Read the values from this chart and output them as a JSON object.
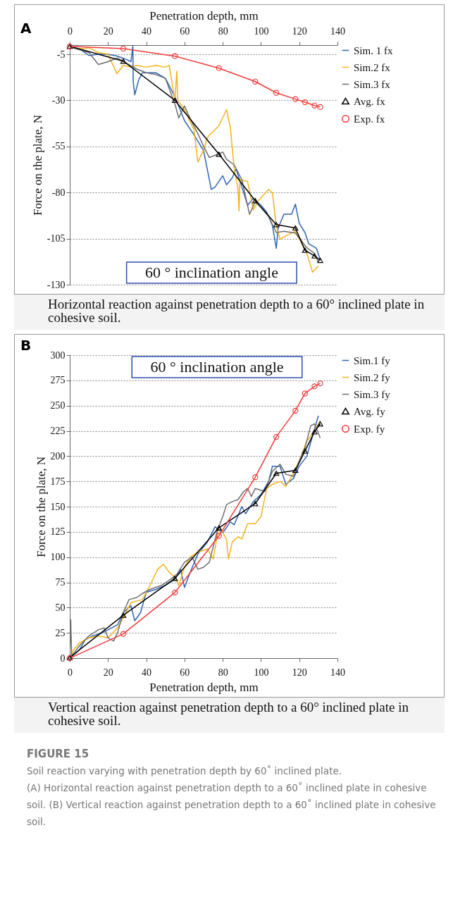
{
  "chart_data": [
    {
      "type": "line",
      "title": "A",
      "xlabel": "Penetration depth, mm",
      "ylabel": "Force on the plate, N",
      "xlim": [
        0,
        140
      ],
      "xticks": [
        0,
        20,
        40,
        60,
        80,
        100,
        120,
        140
      ],
      "ylim": [
        -130,
        0
      ],
      "yticks": [
        -5,
        -30,
        -55,
        -80,
        -105,
        -130
      ],
      "grid": "y",
      "legend": "right",
      "line_style": "solid",
      "annotations": [
        "60 °  inclination angle",
        "Horizontal reaction against penetration depth to a 60° inclined plate in cohesive soil."
      ],
      "series": [
        {
          "name": "Sim. 1 fx",
          "color": "#2e64b4",
          "marker": "none",
          "x": [
            0,
            5,
            10,
            15,
            20,
            25,
            30,
            32,
            33,
            33.2,
            34,
            36,
            38,
            45,
            50,
            55,
            60,
            65,
            70,
            74,
            76,
            80,
            82,
            85,
            87,
            90,
            93,
            96,
            100,
            103,
            106,
            108,
            109,
            112,
            116,
            118,
            120,
            123,
            125,
            129,
            131
          ],
          "values": [
            -1,
            -2,
            -5.6,
            -5,
            -5,
            -6,
            -8,
            -9,
            -0.5,
            -20,
            -27,
            -19,
            -15,
            -15,
            -18,
            -28,
            -41,
            -48.7,
            -57.3,
            -78.3,
            -77,
            -70.9,
            -75.8,
            -72,
            -67.2,
            -77,
            -86.9,
            -83.2,
            -86.9,
            -90.6,
            -98,
            -110.3,
            -99.2,
            -91.8,
            -91.8,
            -86.3,
            -96.7,
            -101.7,
            -107.8,
            -110.3,
            -116.5
          ]
        },
        {
          "name": "Sim.2 fx",
          "color": "#f5b21b",
          "marker": "none",
          "x": [
            0,
            5,
            10,
            15,
            20,
            24.7,
            28,
            32,
            35,
            40,
            45,
            50,
            52,
            55,
            56,
            56.5,
            60,
            65,
            67,
            70,
            72,
            78,
            82,
            84,
            86,
            88,
            88.5,
            89,
            93,
            96,
            99,
            104,
            106,
            108,
            110,
            114,
            118,
            121,
            124,
            127,
            130
          ],
          "values": [
            -1,
            -2,
            -1.5,
            -4,
            -5,
            -15.5,
            -11,
            -12,
            -11,
            -12,
            -11,
            -12,
            -11,
            -30,
            -14.2,
            -30,
            -35,
            -46,
            -63.5,
            -57,
            -50,
            -43.8,
            -35,
            -45,
            -67,
            -78,
            -90,
            -73,
            -74,
            -89.4,
            -84,
            -78.3,
            -80,
            -98,
            -105.4,
            -103,
            -101,
            -107,
            -113,
            -123.2,
            -120
          ]
        },
        {
          "name": "Sim.3 fx",
          "color": "#6e6e6e",
          "marker": "none",
          "x": [
            0,
            5,
            10,
            15,
            20,
            25,
            30,
            35,
            40,
            45,
            50,
            55,
            57,
            60,
            63,
            67,
            70,
            73,
            78,
            80,
            82,
            86,
            90,
            94,
            97,
            100,
            104,
            108,
            112,
            118,
            121,
            124,
            128,
            130
          ],
          "values": [
            -1,
            -2.5,
            -4,
            -10.5,
            -9,
            -7,
            -10,
            -13,
            -15,
            -16,
            -18,
            -32,
            -39.5,
            -33,
            -40,
            -48,
            -55,
            -61,
            -59,
            -58,
            -62,
            -65,
            -73,
            -91.8,
            -85,
            -88,
            -93,
            -101.7,
            -101,
            -102,
            -106,
            -110,
            -113,
            -118
          ]
        },
        {
          "name": "Avg. fx",
          "color": "#000000",
          "marker": "triangle",
          "x": [
            0,
            28,
            55,
            78,
            97,
            108,
            118,
            123,
            128,
            131
          ],
          "values": [
            -0.7,
            -8.7,
            -30,
            -59.2,
            -84.4,
            -97.4,
            -99.2,
            -111.3,
            -114.4,
            -116.8
          ]
        },
        {
          "name": "Exp. fx",
          "color": "#f23a3a",
          "marker": "circle",
          "x": [
            0,
            28,
            55,
            78,
            97,
            108,
            118,
            123,
            128,
            131
          ],
          "values": [
            -0.7,
            -1.9,
            -6,
            -12.5,
            -19.8,
            -25.9,
            -29.3,
            -31,
            -32.8,
            -33.6
          ]
        }
      ]
    },
    {
      "type": "line",
      "title": "B",
      "xlabel": "Penetration depth, mm",
      "ylabel": "Force on the plate, N",
      "xlim": [
        0,
        140
      ],
      "xticks": [
        0,
        20,
        40,
        60,
        80,
        100,
        120,
        140
      ],
      "ylim": [
        0,
        300
      ],
      "yticks": [
        0,
        25,
        50,
        75,
        100,
        125,
        150,
        175,
        200,
        225,
        250,
        275,
        300
      ],
      "grid": "y",
      "legend": "right",
      "line_style": "solid",
      "annotations": [
        "60 °  inclination angle",
        "Vertical reaction against penetration depth to a 60° inclined plate in cohesive soil.",
        "FIGURE 15",
        "Soil reaction varying with penetration depth by 60˚ inclined plate.",
        "(A) Horizontal reaction against penetration depth to a 60˚ inclined plate in cohesive soil. (B) Vertical reaction against penetration depth to a 60˚ inclined plate in cohesive soil."
      ],
      "series": [
        {
          "name": "Sim.1 fy",
          "color": "#2e64b4",
          "marker": "none",
          "x": [
            0,
            2,
            5,
            8,
            12,
            17,
            20,
            25,
            28,
            32,
            34,
            37,
            40,
            45,
            50,
            55,
            58,
            60,
            63,
            67,
            72,
            76,
            80,
            84,
            86,
            90,
            92,
            96,
            100,
            104,
            106,
            110,
            113,
            117,
            120,
            124,
            127,
            130
          ],
          "values": [
            0,
            3,
            8,
            18,
            22,
            25,
            28,
            33,
            45,
            52,
            37,
            45,
            65,
            68,
            72,
            78,
            88,
            70,
            85,
            103,
            115,
            130,
            124,
            135,
            132,
            150,
            143,
            155,
            162,
            175,
            190,
            190,
            172,
            178,
            190,
            200,
            220,
            240
          ]
        },
        {
          "name": "Sim.2 fy",
          "color": "#f5b21b",
          "marker": "none",
          "x": [
            0,
            2,
            5,
            10,
            15,
            20,
            25,
            28,
            32,
            38,
            42,
            46,
            49,
            52,
            55,
            57,
            60,
            63,
            67,
            72,
            75,
            78,
            80,
            82,
            83,
            85,
            88,
            90,
            93,
            97,
            100,
            103,
            106,
            110,
            113,
            116,
            120,
            124,
            128,
            131
          ],
          "values": [
            0,
            8,
            15,
            20,
            22,
            20,
            30,
            40,
            55,
            58,
            72,
            88,
            93,
            85,
            80,
            72,
            90,
            100,
            105,
            108,
            98,
            130,
            125,
            117,
            98,
            115,
            120,
            118,
            133,
            133,
            140,
            168,
            172,
            175,
            170,
            180,
            195,
            215,
            225,
            235
          ]
        },
        {
          "name": "Sim.3 fy",
          "color": "#6e6e6e",
          "marker": "none",
          "x": [
            0,
            0.5,
            1,
            5,
            10,
            15,
            18,
            20,
            23,
            25,
            28,
            31,
            35,
            38,
            42,
            48,
            52,
            56,
            60,
            64,
            67,
            70,
            73,
            77,
            80,
            82,
            85,
            88,
            91,
            93,
            95,
            97,
            102,
            106,
            110,
            113,
            117,
            120,
            123,
            126,
            128,
            131
          ],
          "values": [
            0,
            38,
            2,
            12,
            22,
            28,
            30,
            20,
            17,
            25,
            45,
            58,
            60,
            64,
            68,
            72,
            77,
            83,
            95,
            100,
            88,
            90,
            95,
            125,
            140,
            152,
            155,
            157,
            165,
            168,
            160,
            168,
            165,
            185,
            192,
            182,
            180,
            195,
            208,
            230,
            232,
            218
          ]
        },
        {
          "name": "Avg. fy",
          "color": "#000000",
          "marker": "triangle",
          "x": [
            0,
            28,
            55,
            78,
            97,
            108,
            118,
            123,
            128,
            131
          ],
          "values": [
            0.5,
            42.5,
            79,
            129,
            153,
            183,
            186,
            205,
            224,
            232
          ]
        },
        {
          "name": "Exp. fy",
          "color": "#f23a3a",
          "marker": "circle",
          "x": [
            0,
            28,
            55,
            78,
            97,
            108,
            118,
            123,
            128,
            131
          ],
          "values": [
            0,
            24,
            65,
            121,
            179,
            219,
            245,
            262,
            269,
            272
          ]
        }
      ]
    }
  ]
}
